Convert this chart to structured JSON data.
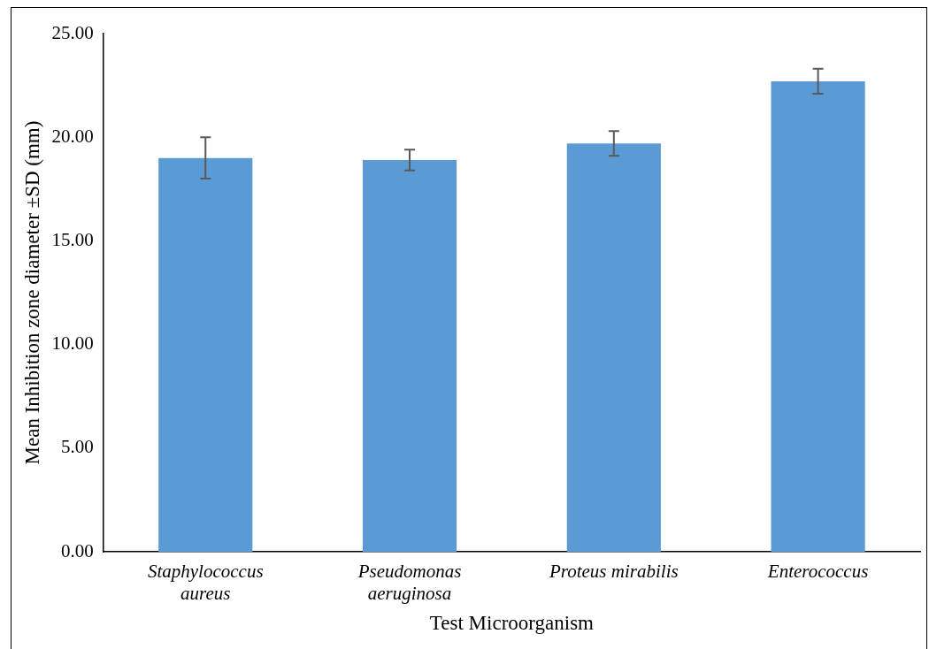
{
  "chart_data": {
    "type": "bar",
    "xlabel": "Test Microorganism",
    "ylabel": "Mean Inhibition zone diameter ±SD (mm)",
    "categories": [
      "Staphylococcus aureus",
      "Pseudomonas aeruginosa",
      "Proteus mirabilis",
      "Enterococcus"
    ],
    "values": [
      19.0,
      18.9,
      19.7,
      22.7
    ],
    "errors": [
      1.0,
      0.5,
      0.6,
      0.6
    ],
    "color": "#5b9bd5",
    "ylim": [
      0,
      25
    ],
    "yticks": [
      {
        "value": 0,
        "label": "0.00"
      },
      {
        "value": 5,
        "label": "5.00"
      },
      {
        "value": 10,
        "label": "10.00"
      },
      {
        "value": 15,
        "label": "15.00"
      },
      {
        "value": 20,
        "label": "20.00"
      },
      {
        "value": 25,
        "label": "25.00"
      }
    ],
    "grid": false,
    "legend": false
  }
}
